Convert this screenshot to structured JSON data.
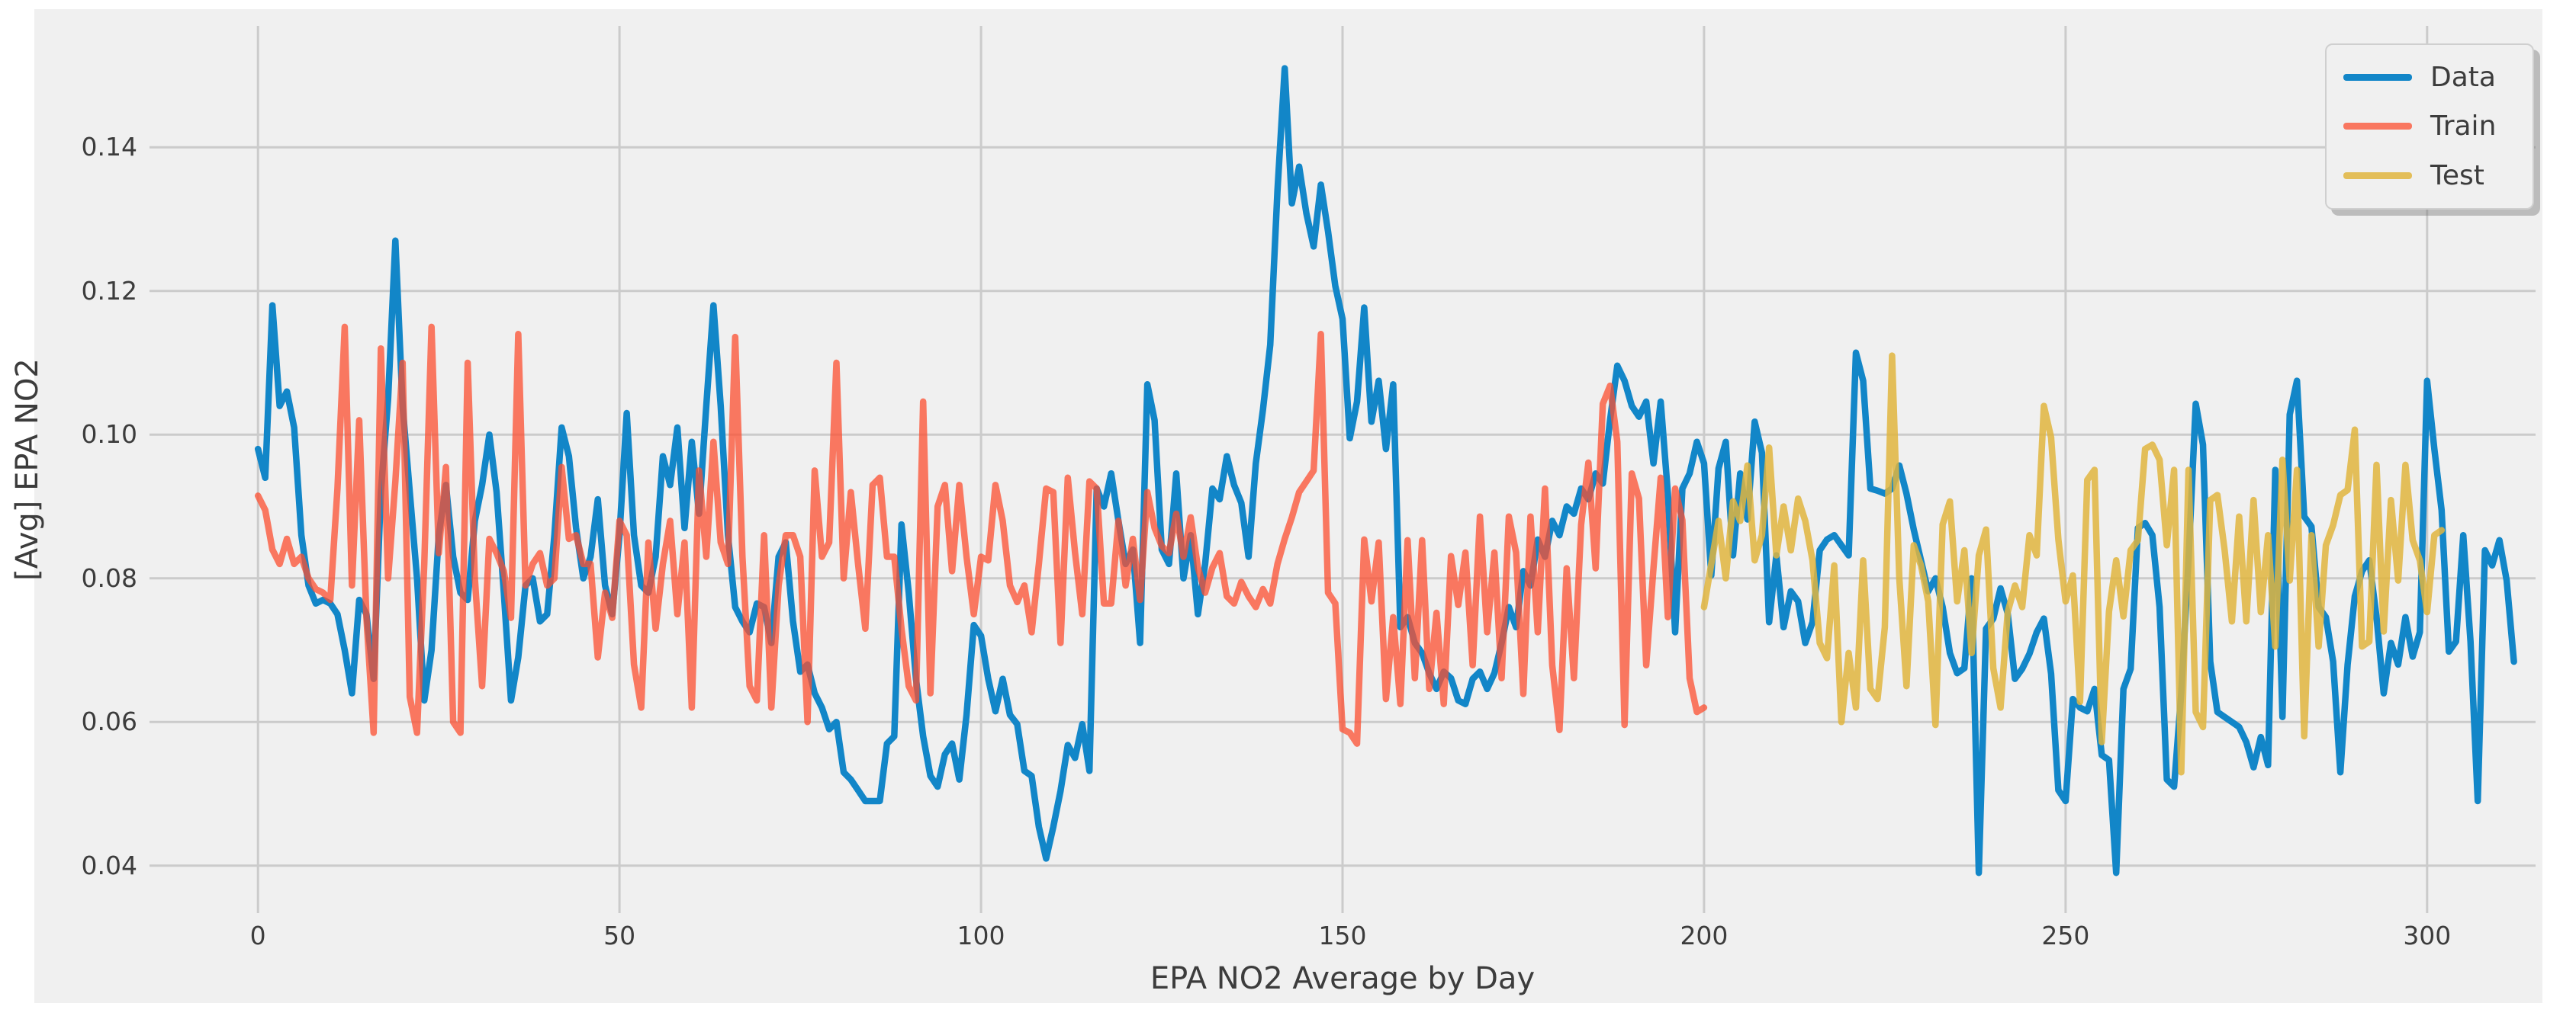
{
  "figure": {
    "background": "#ffffff",
    "axes_background": "#f0f0f0",
    "grid_color": "#cbcbcb",
    "text_color": "#3c3c3c"
  },
  "chart_data": {
    "type": "line",
    "title": "",
    "xlabel": "EPA NO2 Average by Day",
    "ylabel": "[Avg] EPA NO2",
    "xlim": [
      -15,
      315
    ],
    "ylim": [
      0.0334,
      0.1569
    ],
    "xticks": [
      0,
      50,
      100,
      150,
      200,
      250,
      300
    ],
    "yticks": [
      0.04,
      0.06,
      0.08,
      0.1,
      0.12,
      0.14
    ],
    "grid": true,
    "legend_position": "upper right",
    "legend_labels": [
      "Data",
      "Train",
      "Test"
    ],
    "series": [
      {
        "name": "Data",
        "color": "#1286c8",
        "opacity": 1.0,
        "x_start": 0,
        "x_step": 1,
        "values": [
          0.098,
          0.094,
          0.118,
          0.104,
          0.106,
          0.101,
          0.086,
          0.079,
          0.0765,
          0.077,
          0.0765,
          0.075,
          0.07,
          0.064,
          0.077,
          0.075,
          0.066,
          0.092,
          0.105,
          0.127,
          0.104,
          0.092,
          0.08,
          0.063,
          0.07,
          0.086,
          0.093,
          0.083,
          0.078,
          0.077,
          0.088,
          0.093,
          0.1,
          0.092,
          0.078,
          0.063,
          0.069,
          0.079,
          0.08,
          0.074,
          0.075,
          0.086,
          0.101,
          0.097,
          0.087,
          0.08,
          0.083,
          0.091,
          0.079,
          0.075,
          0.086,
          0.103,
          0.086,
          0.079,
          0.078,
          0.083,
          0.097,
          0.093,
          0.101,
          0.087,
          0.099,
          0.089,
          0.104,
          0.118,
          0.104,
          0.086,
          0.076,
          0.074,
          0.0725,
          0.0765,
          0.076,
          0.071,
          0.083,
          0.085,
          0.074,
          0.067,
          0.068,
          0.064,
          0.062,
          0.059,
          0.06,
          0.053,
          0.052,
          0.0505,
          0.049,
          0.049,
          0.049,
          0.057,
          0.058,
          0.0875,
          0.078,
          0.066,
          0.058,
          0.0525,
          0.051,
          0.0555,
          0.057,
          0.052,
          0.061,
          0.0735,
          0.072,
          0.066,
          0.0615,
          0.066,
          0.061,
          0.0597,
          0.0532,
          0.0525,
          0.0454,
          0.041,
          0.0454,
          0.0504,
          0.0568,
          0.055,
          0.0597,
          0.0532,
          0.0925,
          0.09,
          0.0946,
          0.088,
          0.082,
          0.084,
          0.071,
          0.107,
          0.102,
          0.084,
          0.082,
          0.0946,
          0.08,
          0.086,
          0.075,
          0.082,
          0.0925,
          0.091,
          0.097,
          0.093,
          0.0905,
          0.083,
          0.096,
          0.1035,
          0.1125,
          0.134,
          0.151,
          0.1322,
          0.1373,
          0.1308,
          0.1262,
          0.1348,
          0.1283,
          0.1207,
          0.1161,
          0.0995,
          0.1046,
          0.1177,
          0.1018,
          0.1075,
          0.098,
          0.107,
          0.0732,
          0.0746,
          0.071,
          0.0696,
          0.0668,
          0.0646,
          0.067,
          0.0661,
          0.063,
          0.0625,
          0.066,
          0.067,
          0.0646,
          0.0668,
          0.071,
          0.076,
          0.0732,
          0.081,
          0.079,
          0.0854,
          0.083,
          0.088,
          0.086,
          0.09,
          0.089,
          0.0925,
          0.091,
          0.0946,
          0.0932,
          0.102,
          0.1096,
          0.1075,
          0.104,
          0.1025,
          0.1046,
          0.096,
          0.1046,
          0.0918,
          0.0725,
          0.0925,
          0.0946,
          0.099,
          0.096,
          0.0804,
          0.0953,
          0.099,
          0.0832,
          0.0946,
          0.0882,
          0.1018,
          0.0975,
          0.0739,
          0.0832,
          0.0732,
          0.0782,
          0.0768,
          0.071,
          0.0739,
          0.0839,
          0.0854,
          0.086,
          0.0846,
          0.0832,
          0.1114,
          0.1075,
          0.0925,
          0.0922,
          0.0918,
          0.0925,
          0.0957,
          0.0918,
          0.0868,
          0.0825,
          0.0782,
          0.08,
          0.076,
          0.0696,
          0.0668,
          0.0675,
          0.08,
          0.039,
          0.073,
          0.0744,
          0.0786,
          0.0751,
          0.066,
          0.0674,
          0.0695,
          0.0725,
          0.0744,
          0.0667,
          0.0505,
          0.049,
          0.0632,
          0.062,
          0.0615,
          0.0646,
          0.0554,
          0.0547,
          0.039,
          0.0646,
          0.0674,
          0.087,
          0.0877,
          0.086,
          0.076,
          0.052,
          0.051,
          0.064,
          0.0825,
          0.1043,
          0.0986,
          0.0684,
          0.0614,
          0.0607,
          0.06,
          0.0593,
          0.0572,
          0.0537,
          0.0579,
          0.054,
          0.0951,
          0.0607,
          0.1028,
          0.1075,
          0.0886,
          0.0872,
          0.076,
          0.0746,
          0.0684,
          0.053,
          0.068,
          0.0775,
          0.081,
          0.0825,
          0.0746,
          0.064,
          0.071,
          0.068,
          0.0746,
          0.0691,
          0.0725,
          0.1075,
          0.098,
          0.0895,
          0.0698,
          0.0712,
          0.086,
          0.0712,
          0.049,
          0.0839,
          0.0818,
          0.0853,
          0.0797,
          0.0684
        ]
      },
      {
        "name": "Train",
        "color": "#fc4f30",
        "opacity": 0.75,
        "x_start": 0,
        "x_step": 1,
        "values": [
          0.0915,
          0.0895,
          0.084,
          0.082,
          0.0855,
          0.082,
          0.083,
          0.08,
          0.0785,
          0.078,
          0.077,
          0.0925,
          0.115,
          0.079,
          0.102,
          0.0745,
          0.0585,
          0.112,
          0.08,
          0.0935,
          0.11,
          0.0635,
          0.0585,
          0.082,
          0.115,
          0.0835,
          0.0955,
          0.06,
          0.0585,
          0.11,
          0.08,
          0.065,
          0.0855,
          0.0835,
          0.081,
          0.0745,
          0.114,
          0.079,
          0.082,
          0.0835,
          0.079,
          0.08,
          0.0955,
          0.0855,
          0.086,
          0.082,
          0.082,
          0.069,
          0.078,
          0.0745,
          0.088,
          0.086,
          0.068,
          0.062,
          0.085,
          0.073,
          0.082,
          0.088,
          0.075,
          0.085,
          0.062,
          0.095,
          0.083,
          0.099,
          0.085,
          0.082,
          0.1136,
          0.083,
          0.065,
          0.063,
          0.086,
          0.062,
          0.079,
          0.086,
          0.086,
          0.083,
          0.06,
          0.095,
          0.083,
          0.085,
          0.11,
          0.08,
          0.092,
          0.082,
          0.073,
          0.093,
          0.094,
          0.083,
          0.083,
          0.073,
          0.065,
          0.063,
          0.1046,
          0.064,
          0.09,
          0.093,
          0.081,
          0.093,
          0.083,
          0.075,
          0.083,
          0.0825,
          0.093,
          0.088,
          0.079,
          0.0767,
          0.079,
          0.0725,
          0.082,
          0.0925,
          0.092,
          0.071,
          0.094,
          0.0836,
          0.075,
          0.0935,
          0.0925,
          0.0765,
          0.0765,
          0.088,
          0.079,
          0.0855,
          0.077,
          0.092,
          0.087,
          0.0845,
          0.0835,
          0.089,
          0.083,
          0.0885,
          0.0815,
          0.078,
          0.0815,
          0.0835,
          0.0775,
          0.0765,
          0.0795,
          0.0775,
          0.076,
          0.0785,
          0.0765,
          0.082,
          0.0855,
          0.0885,
          0.092,
          0.0935,
          0.095,
          0.114,
          0.078,
          0.0765,
          0.059,
          0.0585,
          0.057,
          0.0854,
          0.0768,
          0.085,
          0.0632,
          0.0746,
          0.0625,
          0.0853,
          0.0661,
          0.0853,
          0.0646,
          0.0752,
          0.0625,
          0.0831,
          0.0763,
          0.0836,
          0.0679,
          0.0886,
          0.0725,
          0.0836,
          0.0661,
          0.0886,
          0.0836,
          0.0639,
          0.0886,
          0.0725,
          0.0925,
          0.0679,
          0.0589,
          0.0814,
          0.0661,
          0.0875,
          0.0961,
          0.0814,
          0.1043,
          0.1068,
          0.099,
          0.0596,
          0.0946,
          0.0911,
          0.0679,
          0.0814,
          0.094,
          0.0746,
          0.0925,
          0.0881,
          0.0661,
          0.0614,
          0.062
        ]
      },
      {
        "name": "Test",
        "color": "#e0b53e",
        "opacity": 0.85,
        "x_start": 200,
        "x_step": 1,
        "values": [
          0.076,
          0.082,
          0.088,
          0.08,
          0.0907,
          0.088,
          0.0957,
          0.0825,
          0.086,
          0.0982,
          0.0832,
          0.09,
          0.0839,
          0.0911,
          0.088,
          0.0825,
          0.071,
          0.0689,
          0.0818,
          0.06,
          0.0696,
          0.062,
          0.0825,
          0.0646,
          0.0632,
          0.0732,
          0.111,
          0.08,
          0.065,
          0.0846,
          0.0818,
          0.0768,
          0.0596,
          0.0875,
          0.0907,
          0.0768,
          0.0839,
          0.0696,
          0.0832,
          0.0868,
          0.0675,
          0.062,
          0.0753,
          0.079,
          0.076,
          0.086,
          0.0832,
          0.104,
          0.0996,
          0.0854,
          0.0768,
          0.0804,
          0.0628,
          0.0937,
          0.0951,
          0.0572,
          0.0754,
          0.0825,
          0.0747,
          0.0839,
          0.0853,
          0.098,
          0.0986,
          0.0965,
          0.0846,
          0.0951,
          0.053,
          0.0951,
          0.0614,
          0.0593,
          0.0909,
          0.0916,
          0.0839,
          0.074,
          0.0886,
          0.074,
          0.0909,
          0.0753,
          0.086,
          0.0705,
          0.0965,
          0.0797,
          0.0951,
          0.058,
          0.086,
          0.0705,
          0.0846,
          0.0874,
          0.0916,
          0.0923,
          0.1007,
          0.0705,
          0.0712,
          0.0958,
          0.0726,
          0.0909,
          0.0797,
          0.0958,
          0.0853,
          0.0825,
          0.0753,
          0.086,
          0.0867
        ]
      }
    ]
  }
}
